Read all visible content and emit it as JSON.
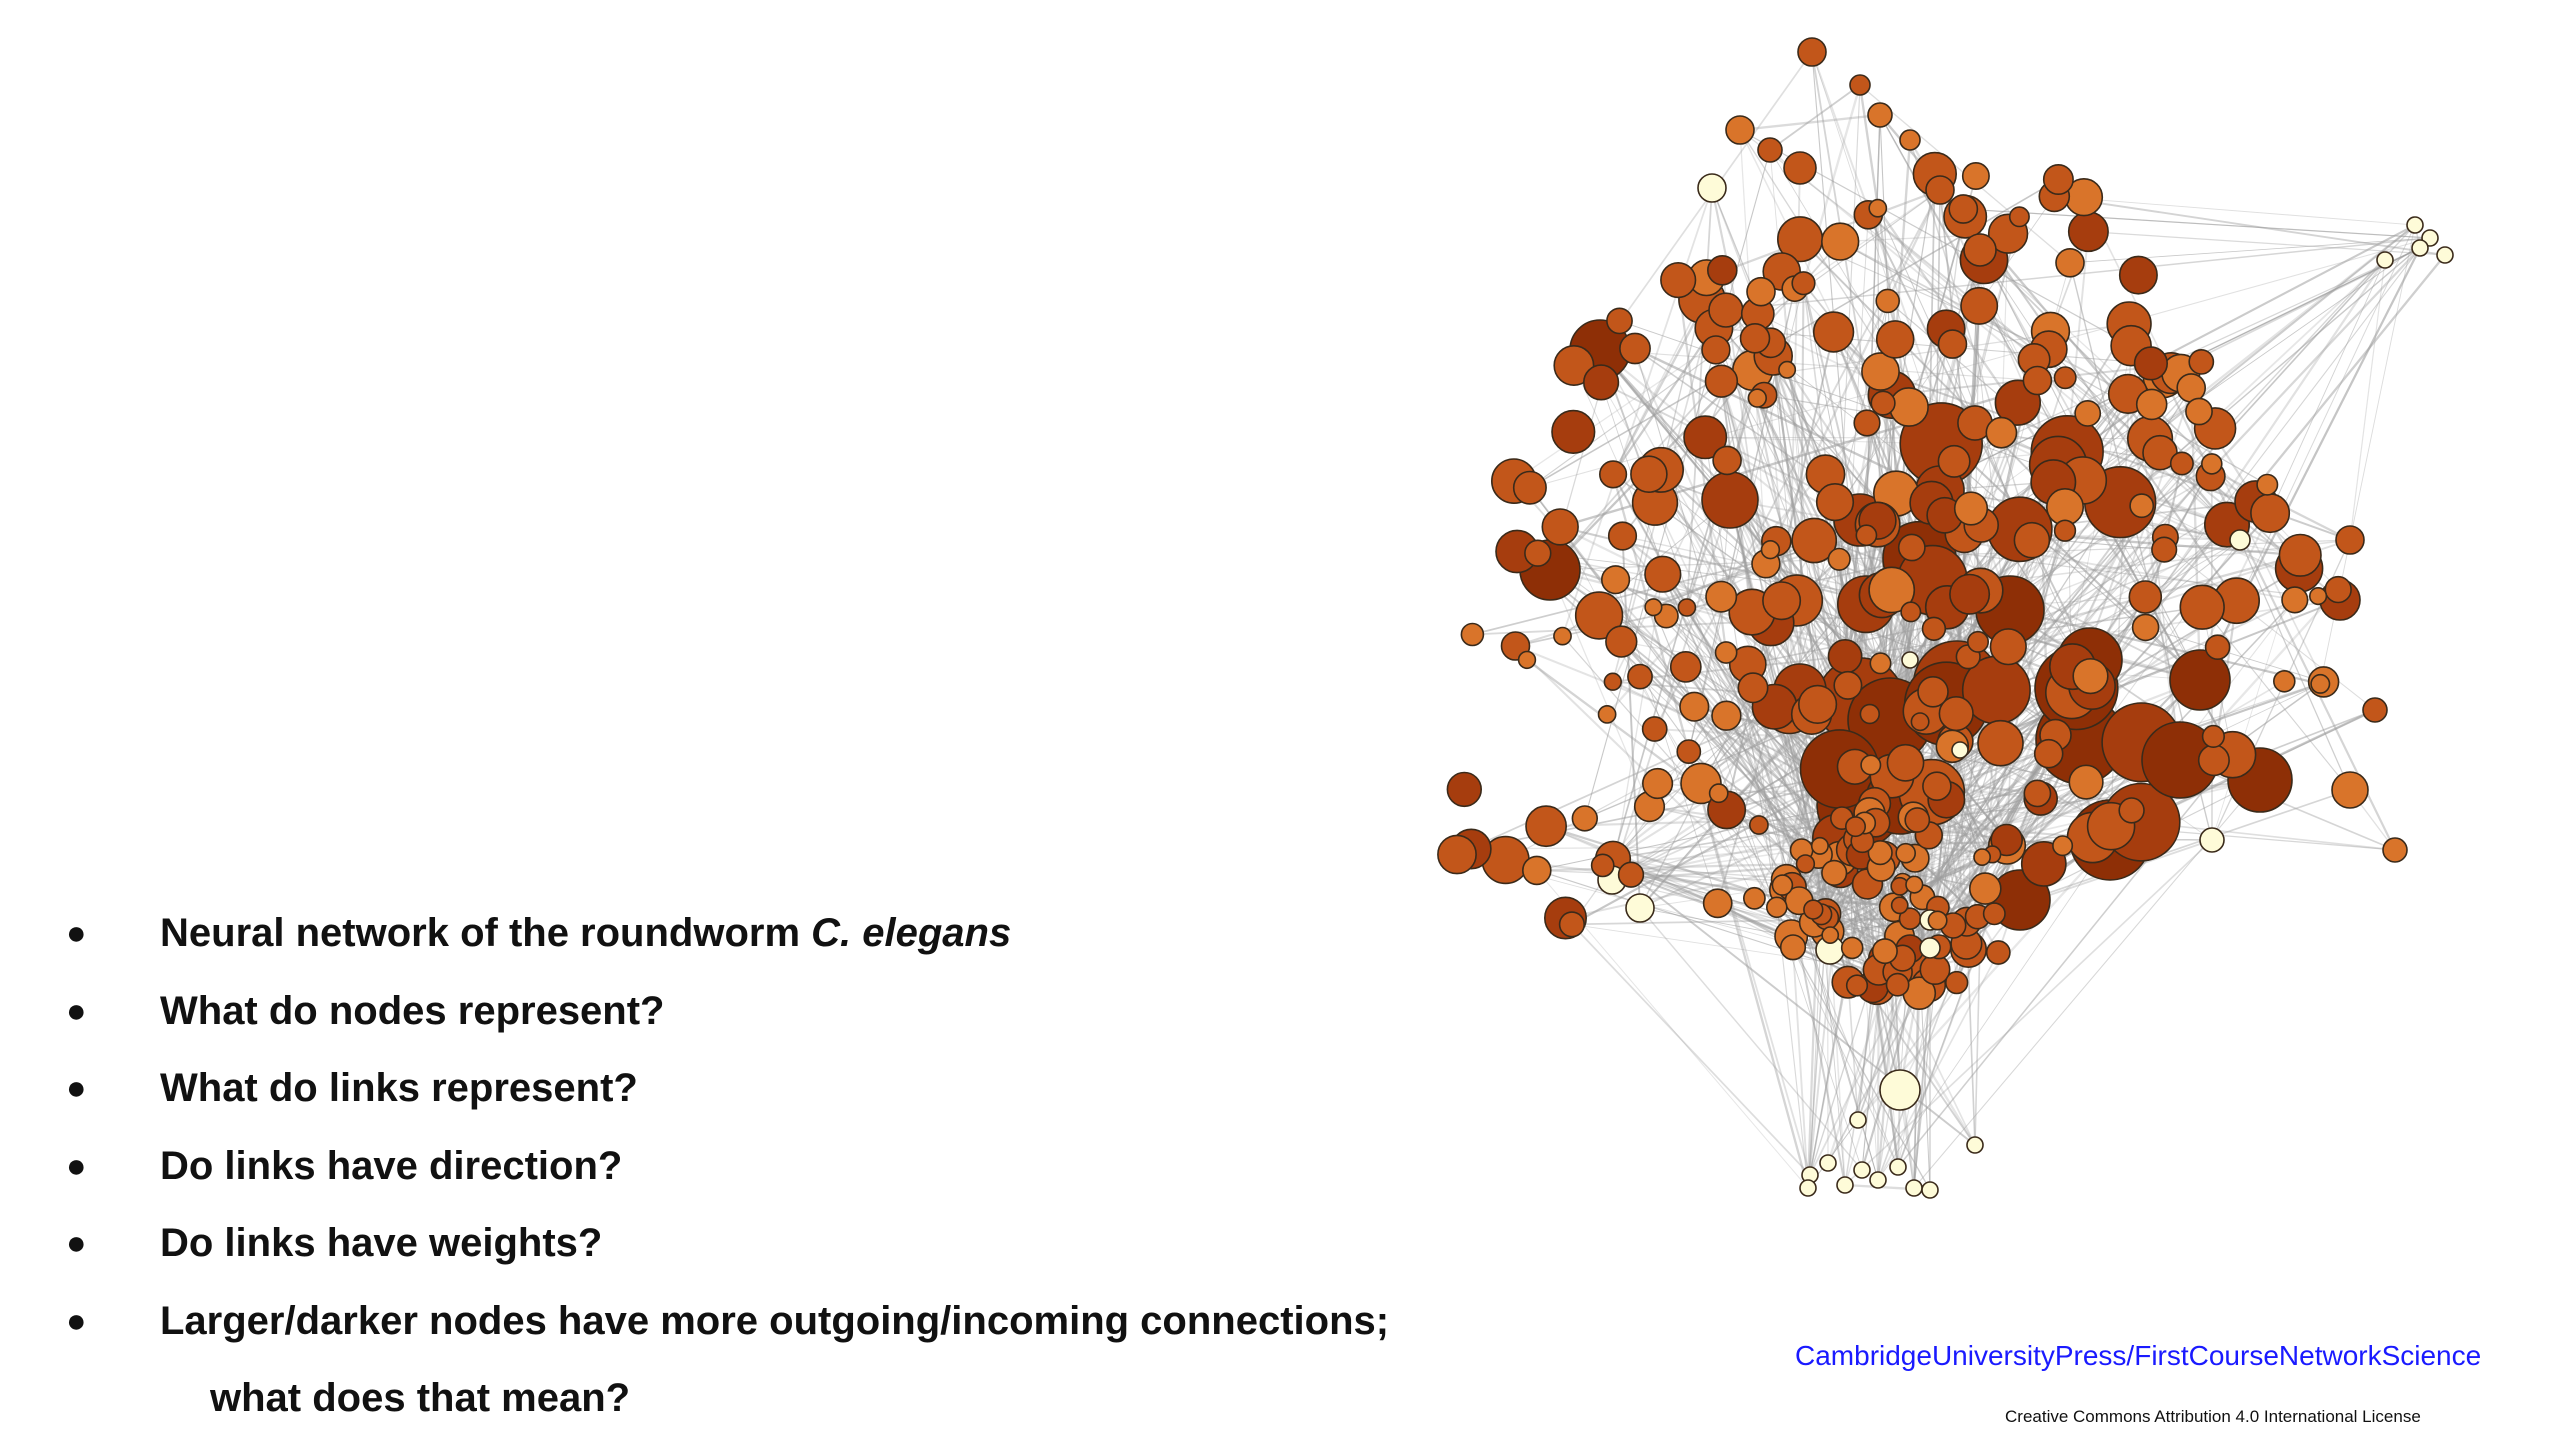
{
  "slide": {
    "bullets": [
      {
        "text": "Neural network of the roundworm ",
        "emph": "C. elegans"
      },
      {
        "text": "What do nodes represent?"
      },
      {
        "text": "What do links represent?"
      },
      {
        "text": "Do links have direction?"
      },
      {
        "text": "Do links have weights?"
      },
      {
        "text": "Larger/darker nodes have more outgoing/incoming connections;",
        "continuation": "what does that mean?"
      }
    ],
    "bullet_symbol": "●",
    "credit_link": "CambridgeUniversityPress/FirstCourseNetworkScience",
    "license": "Creative Commons Attribution 4.0 International License"
  },
  "network": {
    "description_colors": {
      "light": "#fefbd8",
      "mid": "#d9742a",
      "dark": "#a63d0e",
      "darkest": "#8e2f06",
      "edge": "#9e9e9e",
      "node_stroke": "#3a2a1a"
    }
  }
}
